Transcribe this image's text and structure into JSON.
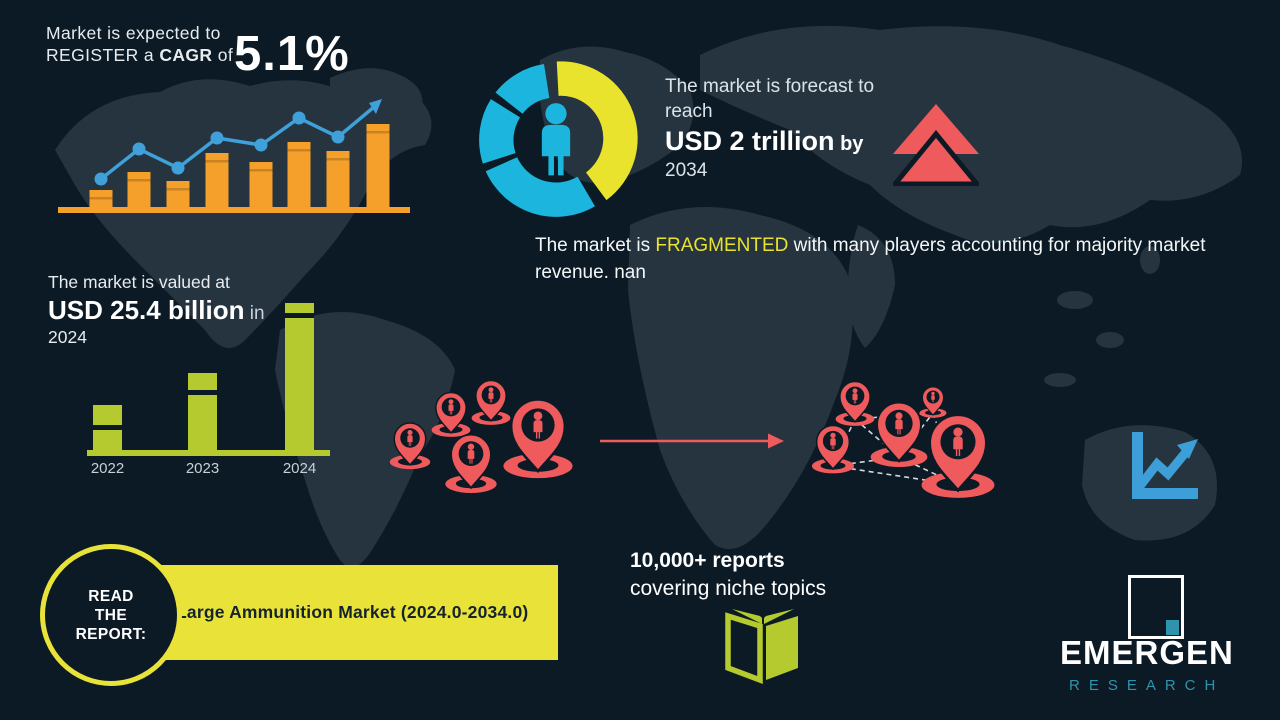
{
  "colors": {
    "background": "#0c1a25",
    "map_silhouette": "#263440",
    "orange": "#f5a02b",
    "blue": "#3fa0da",
    "cyan": "#1cb5dd",
    "yellow": "#e9e32d",
    "banner_yellow": "#e9e339",
    "lime": "#b5ca2f",
    "coral": "#ef5a5c",
    "teal": "#2f93ae",
    "text_light": "#e6ecef"
  },
  "cagr_block": {
    "line1": "Market is expected to",
    "line2_pre": "REGISTER a ",
    "line2_bold": "CAGR",
    "line2_post": " of",
    "value": "5.1%"
  },
  "forecast_block": {
    "line1": "The market is forecast to",
    "line2": "reach",
    "value": "USD 2 trillion",
    "value_suffix": " by",
    "year": "2034"
  },
  "fragmented_block": {
    "pre": "The market is ",
    "highlight": "FRAGMENTED",
    "post": " with many players accounting for majority market revenue. nan"
  },
  "valuation_block": {
    "line1": "The market is valued at",
    "value": "USD 25.4 billion",
    "value_suffix": " in",
    "year": "2024"
  },
  "reports_block": {
    "line1": "10,000+ reports",
    "line2": "covering niche topics"
  },
  "read_report": {
    "line1": "READ",
    "line2": "THE",
    "line3": "REPORT:",
    "banner_text": "Large Ammunition Market (2024.0-2034.0)"
  },
  "logo": {
    "name": "EMERGEN",
    "sub": "RESEARCH"
  },
  "chart_data": [
    {
      "type": "bar",
      "name": "cagr-trend-chart",
      "title": "Market is expected to REGISTER a CAGR of 5.1%",
      "values": [
        17,
        35,
        26,
        54,
        45,
        65,
        56,
        83
      ],
      "line_series": {
        "name": "trend",
        "values": [
          28,
          58,
          39,
          69,
          62,
          89,
          70
        ]
      },
      "bar_color": "#f5a02b",
      "line_color": "#3fa0da",
      "unit": "relative-height",
      "xlabel": "",
      "ylabel": ""
    },
    {
      "type": "pie",
      "name": "market-share-donut",
      "segments": [
        {
          "value": 41,
          "color": "#e9e32d",
          "exploded": true
        },
        {
          "value": 27,
          "color": "#1cb5dd",
          "exploded": false
        },
        {
          "value": 14,
          "color": "#1cb5dd",
          "exploded": false
        },
        {
          "value": 12,
          "color": "#1cb5dd",
          "exploded": false
        }
      ],
      "center_icon": "person-icon",
      "unit": "percent-approx"
    },
    {
      "type": "bar",
      "name": "valuation-bar-chart",
      "categories": [
        "2022",
        "2023",
        "2024"
      ],
      "values": [
        45,
        77,
        147
      ],
      "bar_color": "#b5ca2f",
      "label_color": "#c7d0d6",
      "unit": "relative-height",
      "annotation": "USD 25.4 billion in 2024"
    }
  ]
}
